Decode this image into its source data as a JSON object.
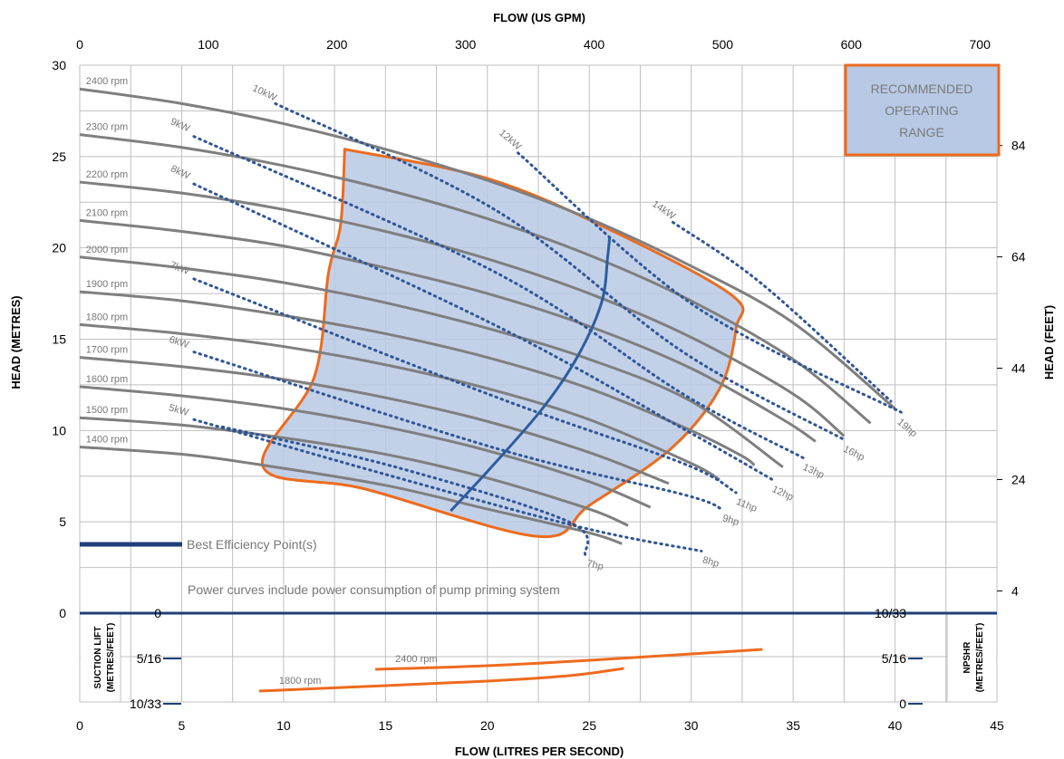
{
  "chart_data": {
    "type": "line",
    "title": "",
    "x_top_label": "FLOW (US GPM)",
    "x_bottom_label": "FLOW (LITRES PER SECOND)",
    "y_left_label": "HEAD (METRES)",
    "y_right_label": "HEAD (FEET)",
    "x_lps_range": [
      0,
      45
    ],
    "x_lps_ticks": [
      "0",
      "5",
      "10",
      "15",
      "20",
      "25",
      "30",
      "35",
      "40",
      "45"
    ],
    "x_gpm_ticks": [
      "0",
      "100",
      "200",
      "300",
      "400",
      "500",
      "600",
      "700"
    ],
    "y_m_range": [
      0,
      30
    ],
    "y_m_ticks": [
      "0",
      "5",
      "10",
      "15",
      "20",
      "25",
      "30"
    ],
    "y_ft_ticks": [
      "4",
      "24",
      "44",
      "64",
      "84"
    ],
    "grid": true,
    "speed_curves": [
      {
        "label": "2400 rpm",
        "points": [
          [
            0,
            28.7
          ],
          [
            5,
            27.9
          ],
          [
            10,
            26.8
          ],
          [
            15,
            25.4
          ],
          [
            20,
            23.7
          ],
          [
            25,
            21.6
          ],
          [
            30,
            19.0
          ],
          [
            35,
            15.9
          ],
          [
            40,
            11.2
          ]
        ]
      },
      {
        "label": "2300 rpm",
        "points": [
          [
            0,
            26.2
          ],
          [
            5,
            25.5
          ],
          [
            10,
            24.5
          ],
          [
            15,
            23.2
          ],
          [
            20,
            21.6
          ],
          [
            25,
            19.6
          ],
          [
            30,
            17.1
          ],
          [
            35,
            13.9
          ],
          [
            38.8,
            10.4
          ]
        ]
      },
      {
        "label": "2200 rpm",
        "points": [
          [
            0,
            23.6
          ],
          [
            5,
            23.0
          ],
          [
            10,
            22.1
          ],
          [
            15,
            20.9
          ],
          [
            20,
            19.4
          ],
          [
            25,
            17.5
          ],
          [
            30,
            15.1
          ],
          [
            35,
            12.0
          ],
          [
            37.5,
            9.7
          ]
        ]
      },
      {
        "label": "2100 rpm",
        "points": [
          [
            0,
            21.5
          ],
          [
            5,
            20.9
          ],
          [
            10,
            20.1
          ],
          [
            15,
            18.9
          ],
          [
            20,
            17.5
          ],
          [
            25,
            15.7
          ],
          [
            30,
            13.4
          ],
          [
            34.5,
            10.6
          ],
          [
            36.1,
            9.4
          ]
        ]
      },
      {
        "label": "2000 rpm",
        "points": [
          [
            0,
            19.5
          ],
          [
            5,
            18.9
          ],
          [
            10,
            18.1
          ],
          [
            15,
            17.0
          ],
          [
            20,
            15.6
          ],
          [
            25,
            13.9
          ],
          [
            30,
            11.6
          ],
          [
            34.5,
            8.0
          ]
        ]
      },
      {
        "label": "1900 rpm",
        "points": [
          [
            0,
            17.6
          ],
          [
            5,
            17.1
          ],
          [
            10,
            16.3
          ],
          [
            15,
            15.3
          ],
          [
            20,
            14.0
          ],
          [
            25,
            12.3
          ],
          [
            30,
            10.0
          ],
          [
            32.5,
            8.6
          ],
          [
            33.1,
            8.1
          ]
        ]
      },
      {
        "label": "1800 rpm",
        "points": [
          [
            0,
            15.8
          ],
          [
            5,
            15.3
          ],
          [
            10,
            14.6
          ],
          [
            15,
            13.6
          ],
          [
            20,
            12.3
          ],
          [
            25,
            10.6
          ],
          [
            30,
            8.2
          ],
          [
            31.4,
            7.3
          ]
        ]
      },
      {
        "label": "1700 rpm",
        "points": [
          [
            0,
            14.0
          ],
          [
            5,
            13.5
          ],
          [
            10,
            12.8
          ],
          [
            15,
            11.8
          ],
          [
            20,
            10.5
          ],
          [
            25,
            8.8
          ],
          [
            28.9,
            7.1
          ]
        ]
      },
      {
        "label": "1600 rpm",
        "points": [
          [
            0,
            12.4
          ],
          [
            5,
            11.9
          ],
          [
            10,
            11.2
          ],
          [
            15,
            10.2
          ],
          [
            20,
            8.9
          ],
          [
            25,
            7.2
          ],
          [
            28.0,
            5.8
          ]
        ]
      },
      {
        "label": "1500 rpm",
        "points": [
          [
            0,
            10.7
          ],
          [
            5,
            10.3
          ],
          [
            10,
            9.6
          ],
          [
            15,
            8.7
          ],
          [
            20,
            7.4
          ],
          [
            25,
            5.7
          ],
          [
            26.9,
            4.8
          ]
        ]
      },
      {
        "label": "1400 rpm",
        "points": [
          [
            0,
            9.1
          ],
          [
            5,
            8.7
          ],
          [
            9,
            8.1
          ],
          [
            15,
            7.0
          ],
          [
            20,
            5.7
          ],
          [
            25,
            4.4
          ],
          [
            26.6,
            3.8
          ]
        ]
      }
    ],
    "power_curves": [
      {
        "label": "10kW",
        "points": [
          [
            9.6,
            27.9
          ],
          [
            20.5,
            22.0
          ],
          [
            29.6,
            14.3
          ],
          [
            37.5,
            9.5
          ]
        ],
        "end_label": "16hp"
      },
      {
        "label": "9kW",
        "points": [
          [
            5.6,
            26.1
          ],
          [
            20.5,
            18.6
          ],
          [
            29.6,
            12.0
          ],
          [
            35.5,
            8.5
          ]
        ],
        "end_label": "13hp"
      },
      {
        "label": "8kW",
        "points": [
          [
            5.6,
            23.5
          ],
          [
            20.5,
            15.7
          ],
          [
            29.6,
            10.1
          ],
          [
            34.0,
            7.3
          ]
        ],
        "end_label": "12hp"
      },
      {
        "label": "7kW",
        "points": [
          [
            5.6,
            18.3
          ],
          [
            20.5,
            11.8
          ],
          [
            29.6,
            8.2
          ],
          [
            32.2,
            6.6
          ]
        ],
        "end_label": "11hp"
      },
      {
        "label": "6kW",
        "points": [
          [
            5.6,
            14.3
          ],
          [
            20.5,
            9.0
          ],
          [
            29.6,
            6.5
          ],
          [
            31.5,
            5.7
          ]
        ],
        "end_label": "9hp"
      },
      {
        "label": "5kW",
        "points": [
          [
            5.6,
            10.6
          ],
          [
            15.0,
            7.6
          ],
          [
            24.6,
            4.7
          ],
          [
            30.5,
            3.4
          ]
        ],
        "end_label": "8hp"
      },
      {
        "label": "12kW",
        "points": [
          [
            21.5,
            25.2
          ],
          [
            30.2,
            16.8
          ],
          [
            40.3,
            11.0
          ]
        ],
        "end_label": "19hp"
      },
      {
        "label": "14kW",
        "points": [
          [
            29.1,
            21.4
          ],
          [
            33.5,
            18.0
          ],
          [
            39.8,
            11.6
          ]
        ],
        "end_label": ""
      },
      {
        "label": "",
        "points": [
          [
            7.0,
            10.2
          ],
          [
            15.5,
            8.0
          ],
          [
            24.0,
            5.0
          ],
          [
            24.8,
            3.2
          ]
        ],
        "end_label": "7hp"
      }
    ],
    "operating_range": [
      [
        13.0,
        25.4
      ],
      [
        20.0,
        23.8
      ],
      [
        26.0,
        21.0
      ],
      [
        32.0,
        17.4
      ],
      [
        32.2,
        15.6
      ],
      [
        31.4,
        12.3
      ],
      [
        29.0,
        9.0
      ],
      [
        25.0,
        5.9
      ],
      [
        22.5,
        4.2
      ],
      [
        14.0,
        6.8
      ],
      [
        9.0,
        8.0
      ],
      [
        11.5,
        12.9
      ],
      [
        12.2,
        18.6
      ],
      [
        12.8,
        21.3
      ],
      [
        13.0,
        25.4
      ]
    ],
    "bep_curve": [
      [
        18.2,
        5.6
      ],
      [
        20.2,
        8.0
      ],
      [
        22.7,
        11.2
      ],
      [
        24.4,
        14.0
      ],
      [
        25.6,
        17.0
      ],
      [
        25.9,
        19.5
      ],
      [
        26.0,
        20.6
      ]
    ],
    "legend": {
      "box_text": [
        "RECOMMENDED",
        "OPERATING",
        "RANGE"
      ],
      "bep_label": "Best Efficiency Point(s)",
      "note": "Power curves include power consumption of pump priming system",
      "position": "top-right"
    },
    "npsh": {
      "left_title": [
        "SUCTION LIFT",
        "(METRES/FEET)"
      ],
      "right_title": [
        "NPSHR",
        "(METRES/FEET)"
      ],
      "left_ticks": [
        "0",
        "5/16",
        "10/33"
      ],
      "right_ticks": [
        "10/33",
        "5/16",
        "0"
      ],
      "curves": [
        {
          "label": "2400 rpm",
          "points": [
            [
              14.5,
              6.2
            ],
            [
              20.0,
              5.8
            ],
            [
              25.0,
              5.2
            ],
            [
              30.0,
              4.5
            ],
            [
              33.5,
              4.0
            ]
          ]
        },
        {
          "label": "1800 rpm",
          "points": [
            [
              8.8,
              8.6
            ],
            [
              15.0,
              8.0
            ],
            [
              20.0,
              7.5
            ],
            [
              24.0,
              6.9
            ],
            [
              26.7,
              6.1
            ]
          ]
        }
      ]
    },
    "colors": {
      "speed": "#7f7f7f",
      "power": "#2f5597",
      "range_edge": "#ed6b1e",
      "range_fill": "#b7c9e4",
      "bep": "#2e5d9e",
      "npsh": "#ed6b1e",
      "baseline": "#1f3f7a",
      "grid": "#bfbfbf"
    }
  }
}
